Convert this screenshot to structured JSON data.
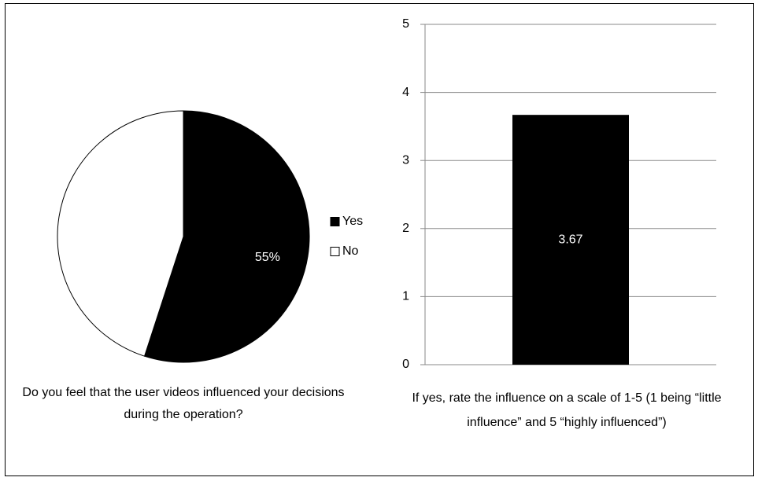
{
  "chart_data": [
    {
      "type": "pie",
      "title": "Do you feel that the user videos influenced your decisions during the operation?",
      "categories": [
        "Yes",
        "No"
      ],
      "values": [
        55,
        45
      ],
      "value_labels": [
        "55%",
        null
      ],
      "colors": [
        "#000000",
        "#ffffff"
      ],
      "legend": "right"
    },
    {
      "type": "bar",
      "title": "If yes, rate the influence on a scale of 1-5 (1 being “little influence” and 5 “highly influenced”)",
      "categories": [
        null
      ],
      "values": [
        3.67
      ],
      "color": "#000000",
      "ylim": [
        0,
        5
      ],
      "yticks": [
        0,
        1,
        2,
        3,
        4,
        5
      ],
      "grid": true
    }
  ]
}
